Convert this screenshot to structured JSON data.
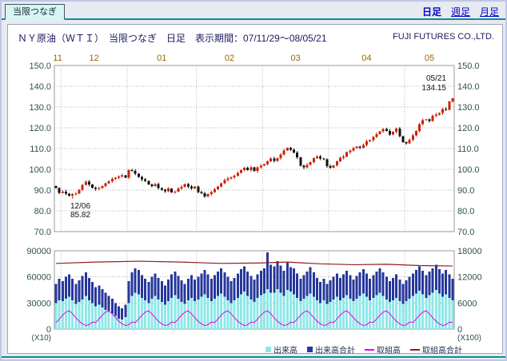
{
  "page": {
    "tab_label": "当限つなぎ",
    "nav_links": [
      {
        "label": "日足",
        "active": true
      },
      {
        "label": "週足",
        "active": false
      },
      {
        "label": "月足",
        "active": false
      }
    ],
    "title": "ＮＹ原油（ＷＴＩ）　当限つなぎ　日足　表示期間：07/11/29～08/05/21",
    "company": "FUJI FUTURES CO.,LTD."
  },
  "colors": {
    "up_candle": "#cc2200",
    "down_candle": "#111111",
    "volume_bar": "#8fe8e8",
    "volume_total_bar": "#25379b",
    "open_interest_line": "#e800e8",
    "open_interest_total_line": "#8b1f1f",
    "grid": "#b4b4b4",
    "plot_border": "#999999",
    "month_label": "#996600",
    "axis_label": "#2e5151",
    "annotation": "#111111"
  },
  "chart_data": {
    "type": "candlestick",
    "title": "ＮＹ原油（ＷＴＩ） 当限つなぎ 日足",
    "period": "07/11/29～08/05/21",
    "price_axis": {
      "min": 70,
      "max": 150,
      "tick_labels": [
        "150.0",
        "140.0",
        "130.0",
        "120.0",
        "110.0",
        "100.0",
        "90.0",
        "80.0",
        "70.0"
      ]
    },
    "months": [
      {
        "label": "11",
        "start": 0,
        "end": 1
      },
      {
        "label": "12",
        "start": 2,
        "end": 21
      },
      {
        "label": "01",
        "start": 22,
        "end": 42
      },
      {
        "label": "02",
        "start": 43,
        "end": 62
      },
      {
        "label": "03",
        "start": 63,
        "end": 82
      },
      {
        "label": "04",
        "start": 83,
        "end": 105
      },
      {
        "label": "05",
        "start": 106,
        "end": 120
      }
    ],
    "open_first": 92.0,
    "closes": [
      91.0,
      88.7,
      89.3,
      88.3,
      87.3,
      88.0,
      88.3,
      90.2,
      92.5,
      94.0,
      92.6,
      91.2,
      90.5,
      90.9,
      92.0,
      93.2,
      94.2,
      95.3,
      96.0,
      96.6,
      97.1,
      96.0,
      99.6,
      99.2,
      97.9,
      96.3,
      95.1,
      94.4,
      92.7,
      91.9,
      92.8,
      91.0,
      90.1,
      89.5,
      90.7,
      88.9,
      89.3,
      90.8,
      91.6,
      92.9,
      91.7,
      90.7,
      91.7,
      89.0,
      88.4,
      87.0,
      88.1,
      89.1,
      90.3,
      91.8,
      93.2,
      94.9,
      95.5,
      96.2,
      97.0,
      98.2,
      99.7,
      100.7,
      99.6,
      100.9,
      99.2,
      100.9,
      101.8,
      102.5,
      103.8,
      105.2,
      104.0,
      105.4,
      107.2,
      109.1,
      110.3,
      109.4,
      108.0,
      105.7,
      101.8,
      100.9,
      102.2,
      103.5,
      105.3,
      106.1,
      105.2,
      104.8,
      101.6,
      100.8,
      101.9,
      103.8,
      105.5,
      106.2,
      108.3,
      109.0,
      110.1,
      110.9,
      110.3,
      111.8,
      113.5,
      114.1,
      115.6,
      117.0,
      118.3,
      119.4,
      118.5,
      116.8,
      118.1,
      119.6,
      115.9,
      113.0,
      112.5,
      114.2,
      116.3,
      118.5,
      121.8,
      123.7,
      124.1,
      123.2,
      125.8,
      126.3,
      127.1,
      129.1,
      128.6,
      132.7,
      134.15
    ],
    "low_annotation": {
      "index": 5,
      "date": "12/06",
      "value": 85.82,
      "label_value": "85.82"
    },
    "last_annotation": {
      "index": 120,
      "date": "05/21",
      "value": 134.15,
      "label_value": "134.15"
    },
    "volume_axis": {
      "left_max": 90000,
      "left_tick_labels": [
        "90000",
        "60000",
        "30000",
        "0"
      ],
      "left_note": "(X10)",
      "right_max": 18000,
      "right_tick_labels": [
        "18000",
        "12000",
        "6000",
        "0"
      ],
      "right_note": "(X100)"
    },
    "volume_total": [
      52000,
      58000,
      55000,
      60000,
      63000,
      58000,
      52000,
      56000,
      61000,
      65000,
      59000,
      54000,
      48000,
      50000,
      46000,
      42000,
      38000,
      35000,
      30000,
      26000,
      24000,
      28000,
      55000,
      65000,
      70000,
      68000,
      62000,
      58000,
      54000,
      60000,
      64000,
      59000,
      55000,
      50000,
      57000,
      63000,
      66000,
      61000,
      56000,
      52000,
      58000,
      62000,
      57000,
      60000,
      64000,
      68000,
      63000,
      58000,
      62000,
      66000,
      70000,
      65000,
      60000,
      55000,
      59000,
      64000,
      69000,
      72000,
      66000,
      61000,
      57000,
      63000,
      67000,
      70000,
      88000,
      74000,
      72000,
      78000,
      73000,
      67000,
      76000,
      71000,
      70000,
      64000,
      58000,
      62000,
      66000,
      71000,
      65000,
      59000,
      54000,
      58000,
      52000,
      56000,
      60000,
      64000,
      59000,
      63000,
      67000,
      62000,
      57000,
      61000,
      65000,
      69000,
      64000,
      58000,
      62000,
      66000,
      70000,
      65000,
      60000,
      55000,
      59000,
      63000,
      57000,
      52000,
      56000,
      60000,
      64000,
      68000,
      72000,
      67000,
      62000,
      66000,
      70000,
      74000,
      69000,
      64000,
      68000,
      63000,
      58000
    ],
    "volume": [
      30000,
      33000,
      32000,
      35000,
      37000,
      33000,
      29000,
      31000,
      34000,
      38000,
      33000,
      30000,
      26000,
      28000,
      25000,
      22000,
      20000,
      18000,
      15000,
      12000,
      11000,
      14000,
      30000,
      38000,
      42000,
      40000,
      36000,
      33000,
      30000,
      35000,
      38000,
      34000,
      31000,
      28000,
      32000,
      36000,
      39000,
      35000,
      31000,
      29000,
      33000,
      36000,
      32000,
      34000,
      37000,
      40000,
      36000,
      32000,
      35000,
      38000,
      41000,
      37000,
      33000,
      30000,
      33000,
      36000,
      40000,
      43000,
      38000,
      34000,
      31000,
      36000,
      39000,
      41000,
      46000,
      42000,
      42000,
      46000,
      42000,
      38000,
      45000,
      43000,
      40000,
      36000,
      32000,
      35000,
      38000,
      41000,
      37000,
      33000,
      30000,
      33000,
      29000,
      31000,
      34000,
      37000,
      33000,
      36000,
      39000,
      35000,
      32000,
      35000,
      38000,
      41000,
      37000,
      33000,
      36000,
      39000,
      42000,
      38000,
      34000,
      31000,
      33000,
      36000,
      32000,
      29000,
      32000,
      35000,
      38000,
      41000,
      44000,
      40000,
      36000,
      39000,
      42000,
      45000,
      41000,
      37000,
      40000,
      36000,
      33000
    ],
    "open_interest": [
      1500,
      2300,
      3200,
      3900,
      4200,
      3500,
      2600,
      1800,
      1200,
      800,
      1000,
      1600,
      1500,
      2300,
      3200,
      3900,
      4200,
      3500,
      2600,
      1800,
      1200,
      800,
      1000,
      1600,
      1500,
      2300,
      3200,
      3900,
      4200,
      3500,
      2600,
      1800,
      1200,
      800,
      1000,
      1600,
      1500,
      2300,
      3200,
      3900,
      4200,
      3500,
      2600,
      1800,
      1200,
      800,
      1000,
      1600,
      1500,
      2300,
      3200,
      3900,
      4200,
      3500,
      2600,
      1800,
      1200,
      800,
      1000,
      1600,
      1500,
      2300,
      3200,
      3900,
      4200,
      3500,
      2600,
      1800,
      1200,
      800,
      1000,
      1600,
      1500,
      2300,
      3200,
      3900,
      4200,
      3500,
      2600,
      1800,
      1200,
      800,
      1000,
      1600,
      1500,
      2300,
      3200,
      3900,
      4200,
      3500,
      2600,
      1800,
      1200,
      800,
      1000,
      1600,
      1500,
      2300,
      3200,
      3900,
      4200,
      3500,
      2600,
      1800,
      1200,
      800,
      1000,
      1600,
      1500,
      2300,
      3200,
      3900,
      4200,
      3500,
      2600,
      1800,
      1200,
      800,
      1000,
      1600,
      1500
    ],
    "open_interest_total_points": [
      {
        "i": 0,
        "v": 15100
      },
      {
        "i": 12,
        "v": 15400
      },
      {
        "i": 25,
        "v": 15600
      },
      {
        "i": 38,
        "v": 15400
      },
      {
        "i": 50,
        "v": 15100
      },
      {
        "i": 62,
        "v": 15200
      },
      {
        "i": 70,
        "v": 15400
      },
      {
        "i": 80,
        "v": 15000
      },
      {
        "i": 90,
        "v": 14800
      },
      {
        "i": 100,
        "v": 14900
      },
      {
        "i": 110,
        "v": 14600
      },
      {
        "i": 120,
        "v": 14500
      }
    ]
  },
  "legend": [
    {
      "label": "出来高",
      "marker": "bar",
      "color": "#8fe8e8"
    },
    {
      "label": "出来高合計",
      "marker": "bar",
      "color": "#25379b"
    },
    {
      "label": "取組高",
      "marker": "line",
      "color": "#e800e8"
    },
    {
      "label": "取組高合計",
      "marker": "line",
      "color": "#8b1f1f"
    }
  ]
}
